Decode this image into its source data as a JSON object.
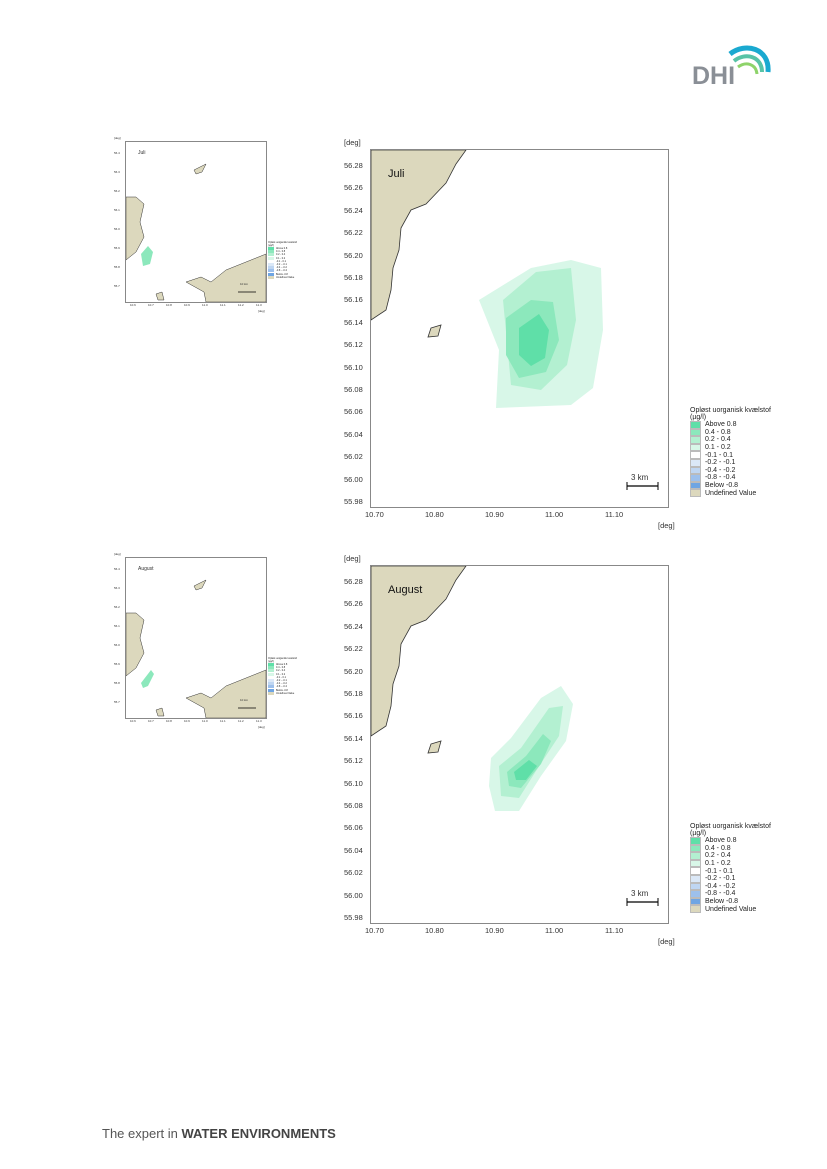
{
  "brand": {
    "logo_text": "DHI",
    "tagline_prefix": "The expert in ",
    "tagline_strong": "WATER ENVIRONMENTS"
  },
  "axes": {
    "unit": "[deg]",
    "y_ticks": [
      "56.28",
      "56.26",
      "56.24",
      "56.22",
      "56.20",
      "56.18",
      "56.16",
      "56.14",
      "56.12",
      "56.10",
      "56.08",
      "56.06",
      "56.04",
      "56.02",
      "56.00",
      "55.98"
    ],
    "x_ticks": [
      "10.70",
      "10.80",
      "10.90",
      "11.00",
      "11.10"
    ],
    "overview_y_ticks": [
      "56.4",
      "56.3",
      "56.2",
      "56.1",
      "56.0",
      "55.9",
      "55.8",
      "55.7"
    ],
    "overview_x_ticks": [
      "10.6",
      "10.7",
      "10.8",
      "10.9",
      "11.0",
      "11.1",
      "11.2",
      "11.3"
    ]
  },
  "legend": {
    "title_line1": "Opløst uorganisk kvælstof",
    "title_line2": "(µg/l)",
    "items": [
      {
        "label": "Above  0.8",
        "color": "#5fdfa8"
      },
      {
        "label": "0.4 -  0.8",
        "color": "#8ce8bc"
      },
      {
        "label": "0.2 -  0.4",
        "color": "#b3f0d1"
      },
      {
        "label": "0.1 -  0.2",
        "color": "#d8f7e8"
      },
      {
        "label": "-0.1 -  0.1",
        "color": "#ffffff"
      },
      {
        "label": "-0.2 - -0.1",
        "color": "#dbe8f7"
      },
      {
        "label": "-0.4 - -0.2",
        "color": "#bfd6f2"
      },
      {
        "label": "-0.8 - -0.4",
        "color": "#9dc0ec"
      },
      {
        "label": "Below -0.8",
        "color": "#6fa5e3"
      },
      {
        "label": "Undefined Value",
        "color": "#dcd8bd"
      }
    ]
  },
  "scale_bar": {
    "label": "3 km",
    "overview_label": "10 km"
  },
  "panels": [
    {
      "month": "Juli"
    },
    {
      "month": "August"
    }
  ],
  "colors": {
    "land": "#dcd8bd",
    "land_edge": "#333333"
  }
}
